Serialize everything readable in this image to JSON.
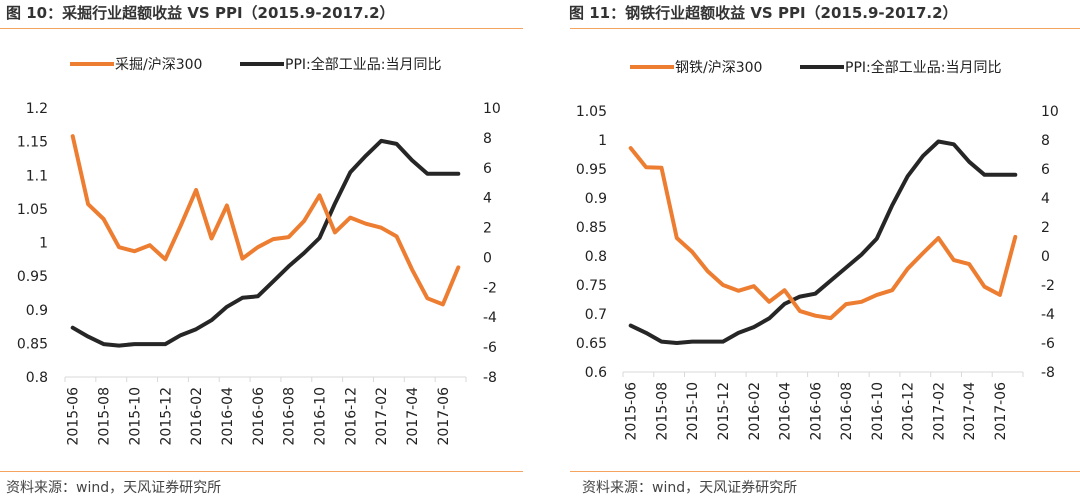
{
  "colors": {
    "orange": "#ed7d31",
    "black": "#262626",
    "rule": "#f4a460",
    "axis": "#d9d9d9"
  },
  "chart_data": [
    {
      "type": "line",
      "title": "图 10：采掘行业超额收益 VS PPI（2015.9-2017.2）",
      "source": "资料来源：wind，天风证券研究所",
      "x": [
        "2015-06",
        "2015-07",
        "2015-08",
        "2015-09",
        "2015-10",
        "2015-11",
        "2015-12",
        "2016-01",
        "2016-02",
        "2016-03",
        "2016-04",
        "2016-05",
        "2016-06",
        "2016-07",
        "2016-08",
        "2016-09",
        "2016-10",
        "2016-11",
        "2016-12",
        "2017-01",
        "2017-02",
        "2017-03",
        "2017-04",
        "2017-05",
        "2017-06",
        "2017-07"
      ],
      "xtick_labels": [
        "2015-06",
        "2015-08",
        "2015-10",
        "2015-12",
        "2016-02",
        "2016-04",
        "2016-06",
        "2016-08",
        "2016-10",
        "2016-12",
        "2017-02",
        "2017-04",
        "2017-06"
      ],
      "ylim_left": [
        0.8,
        1.2
      ],
      "yticks_left": [
        "0.8",
        "0.85",
        "0.9",
        "0.95",
        "1",
        "1.05",
        "1.1",
        "1.15",
        "1.2"
      ],
      "ylim_right": [
        -8,
        10
      ],
      "yticks_right": [
        "-8",
        "-6",
        "-4",
        "-2",
        "0",
        "2",
        "4",
        "6",
        "8",
        "10"
      ],
      "legend_position": "top-center",
      "grid": false,
      "series": [
        {
          "name": "采掘/沪深300",
          "axis": "left",
          "color": "#ed7d31",
          "values": [
            1.158,
            1.057,
            1.035,
            0.993,
            0.987,
            0.996,
            0.975,
            1.025,
            1.078,
            1.006,
            1.055,
            0.976,
            0.993,
            1.005,
            1.008,
            1.032,
            1.07,
            1.015,
            1.037,
            1.028,
            1.022,
            1.009,
            0.96,
            0.917,
            0.908,
            0.963
          ]
        },
        {
          "name": "PPI:全部工业品:当月同比",
          "axis": "right",
          "color": "#262626",
          "values": [
            -4.7,
            -5.3,
            -5.8,
            -5.9,
            -5.8,
            -5.8,
            -5.8,
            -5.2,
            -4.8,
            -4.2,
            -3.3,
            -2.7,
            -2.6,
            -1.6,
            -0.6,
            0.3,
            1.3,
            3.6,
            5.7,
            6.8,
            7.8,
            7.6,
            6.5,
            5.6,
            5.6,
            5.6
          ]
        }
      ]
    },
    {
      "type": "line",
      "title": "图 11：钢铁行业超额收益 VS PPI（2015.9-2017.2）",
      "source": "资料来源：wind，天风证券研究所",
      "x": [
        "2015-06",
        "2015-07",
        "2015-08",
        "2015-09",
        "2015-10",
        "2015-11",
        "2015-12",
        "2016-01",
        "2016-02",
        "2016-03",
        "2016-04",
        "2016-05",
        "2016-06",
        "2016-07",
        "2016-08",
        "2016-09",
        "2016-10",
        "2016-11",
        "2016-12",
        "2017-01",
        "2017-02",
        "2017-03",
        "2017-04",
        "2017-05",
        "2017-06",
        "2017-07"
      ],
      "xtick_labels": [
        "2015-06",
        "2015-08",
        "2015-10",
        "2015-12",
        "2016-02",
        "2016-04",
        "2016-06",
        "2016-08",
        "2016-10",
        "2016-12",
        "2017-02",
        "2017-04",
        "2017-06"
      ],
      "ylim_left": [
        0.6,
        1.05
      ],
      "yticks_left": [
        "0.6",
        "0.65",
        "0.7",
        "0.75",
        "0.8",
        "0.85",
        "0.9",
        "0.95",
        "1",
        "1.05"
      ],
      "ylim_right": [
        -8,
        10
      ],
      "yticks_right": [
        "-8",
        "-6",
        "-4",
        "-2",
        "0",
        "2",
        "4",
        "6",
        "8",
        "10"
      ],
      "legend_position": "top-center",
      "grid": false,
      "series": [
        {
          "name": "钢铁/沪深300",
          "axis": "left",
          "color": "#ed7d31",
          "values": [
            0.986,
            0.953,
            0.952,
            0.831,
            0.807,
            0.774,
            0.75,
            0.74,
            0.748,
            0.721,
            0.741,
            0.705,
            0.697,
            0.693,
            0.717,
            0.721,
            0.733,
            0.741,
            0.778,
            0.805,
            0.831,
            0.793,
            0.786,
            0.747,
            0.733,
            0.833
          ]
        },
        {
          "name": "PPI:全部工业品:当月同比",
          "axis": "right",
          "color": "#262626",
          "values": [
            -4.8,
            -5.3,
            -5.9,
            -6.0,
            -5.9,
            -5.9,
            -5.9,
            -5.3,
            -4.9,
            -4.3,
            -3.3,
            -2.8,
            -2.6,
            -1.7,
            -0.8,
            0.1,
            1.2,
            3.5,
            5.5,
            6.9,
            7.9,
            7.7,
            6.5,
            5.6,
            5.6,
            5.6
          ]
        }
      ]
    }
  ]
}
